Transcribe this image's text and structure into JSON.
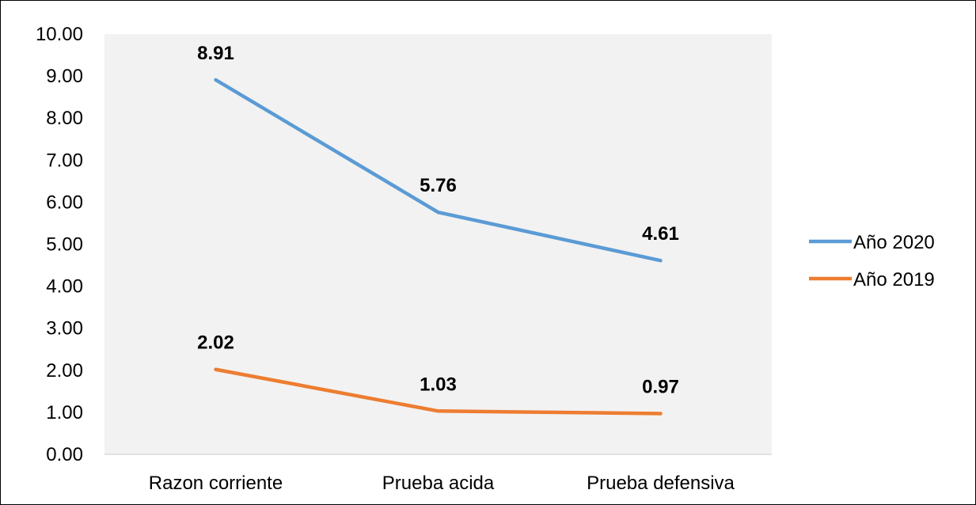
{
  "chart_data": {
    "type": "line",
    "title": "",
    "xlabel": "",
    "ylabel": "",
    "categories": [
      "Razon corriente",
      "Prueba acida",
      "Prueba defensiva"
    ],
    "ylim": [
      0,
      10
    ],
    "y_ticks": [
      "0.00",
      "1.00",
      "2.00",
      "3.00",
      "4.00",
      "5.00",
      "6.00",
      "7.00",
      "8.00",
      "9.00",
      "10.00"
    ],
    "series": [
      {
        "name": "Año 2020",
        "color": "#5b9bd5",
        "values": [
          8.91,
          5.76,
          4.61
        ],
        "labels": [
          "8.91",
          "5.76",
          "4.61"
        ]
      },
      {
        "name": "Año 2019",
        "color": "#ed7d31",
        "values": [
          2.02,
          1.03,
          0.97
        ],
        "labels": [
          "2.02",
          "1.03",
          "0.97"
        ]
      }
    ],
    "grid": false,
    "plot_background": "#f2f2f2",
    "legend_position": "right"
  }
}
